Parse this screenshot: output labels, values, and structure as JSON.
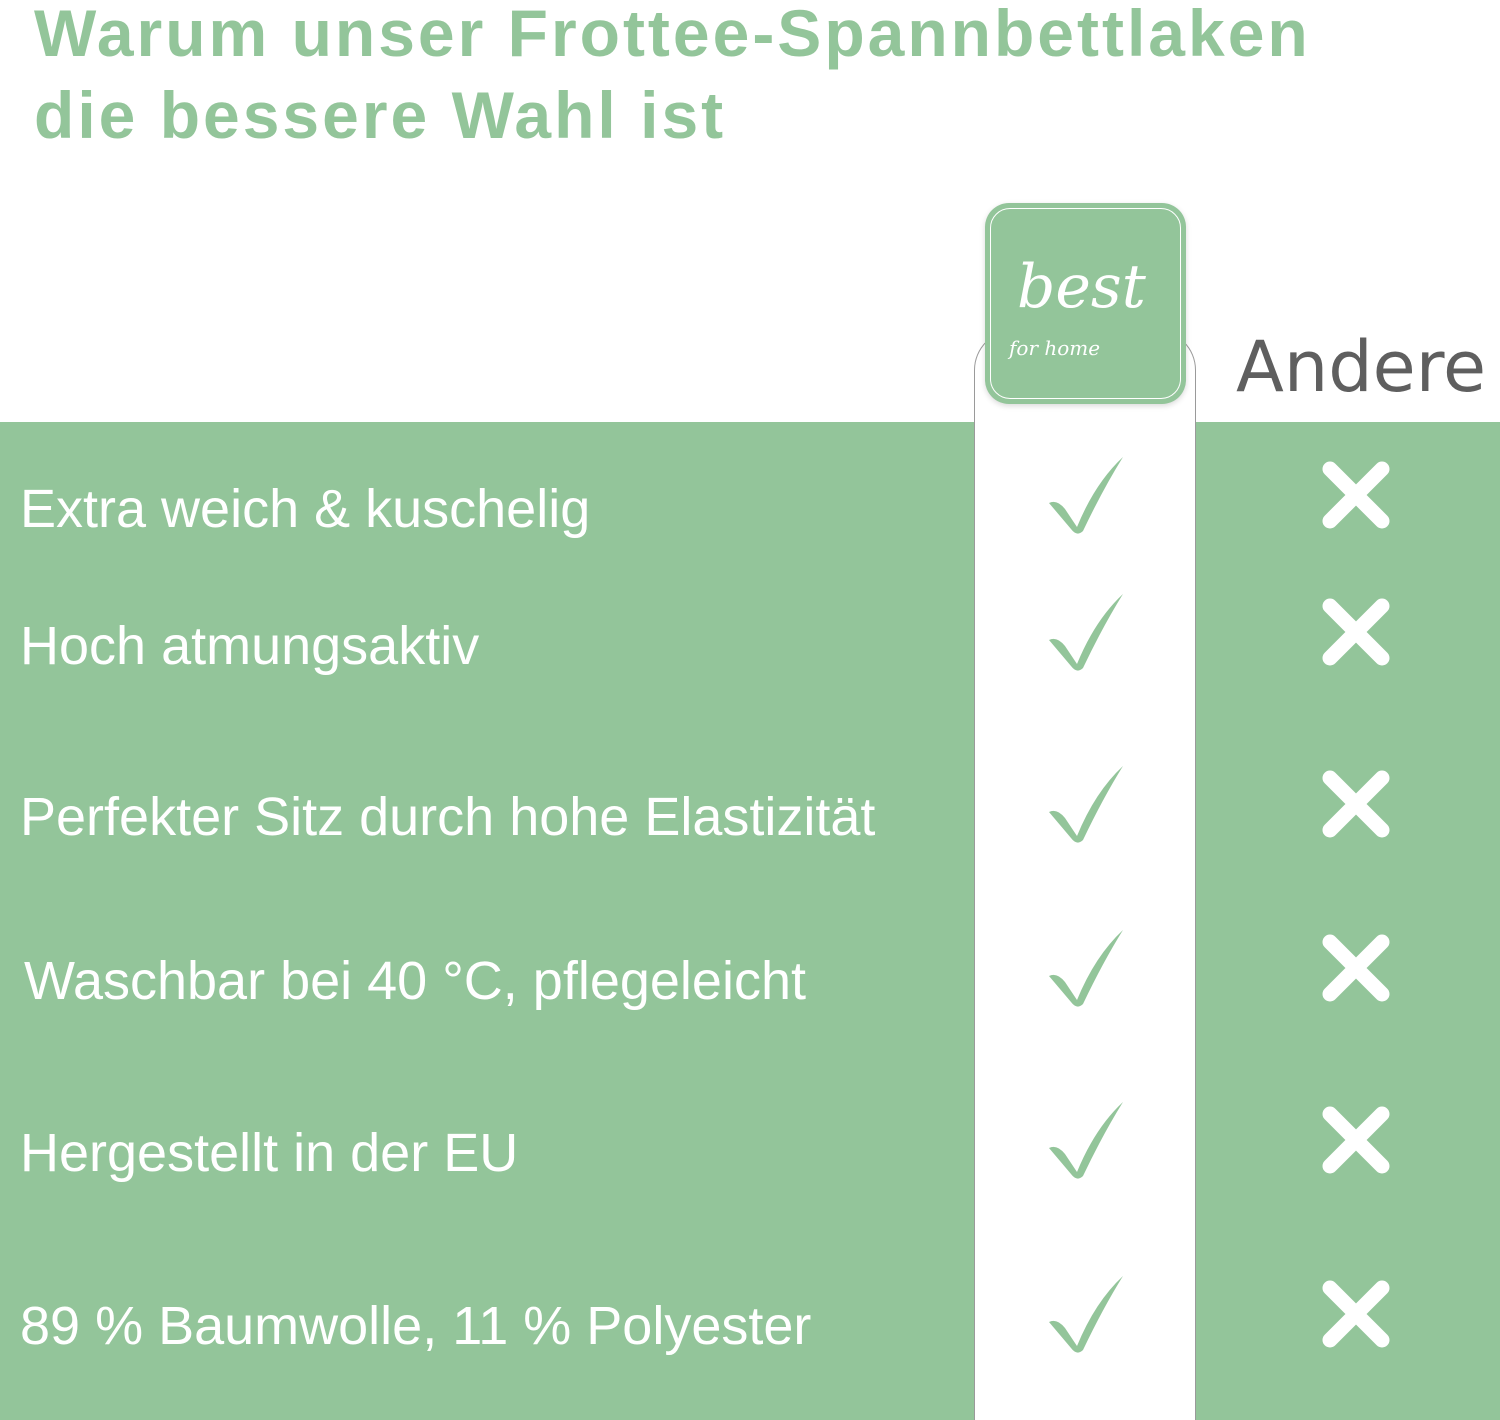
{
  "header": {
    "title_line1": "Warum unser Frottee-Spannbettlaken",
    "title_line2": "die bessere Wahl ist"
  },
  "logo": {
    "brand": "best",
    "tagline": "for home"
  },
  "columns": {
    "ours_icon": "best-for-home-logo",
    "other_label": "Andere"
  },
  "colors": {
    "accent": "#93c59a",
    "text_gray": "#5f5f5f"
  },
  "rows": [
    {
      "label": "Extra weich & kuschelig",
      "ours": "check-icon",
      "other": "x-icon"
    },
    {
      "label": "Hoch atmungsaktiv",
      "ours": "check-icon",
      "other": "x-icon"
    },
    {
      "label": "Perfekter Sitz durch hohe Elastizität",
      "ours": "check-icon",
      "other": "x-icon"
    },
    {
      "label": "Waschbar bei 40 °C, pflegeleicht",
      "ours": "check-icon",
      "other": "x-icon"
    },
    {
      "label": "Hergestellt in der EU",
      "ours": "check-icon",
      "other": "x-icon"
    },
    {
      "label": "89 % Baumwolle, 11 % Polyester",
      "ours": "check-icon",
      "other": "x-icon"
    }
  ]
}
